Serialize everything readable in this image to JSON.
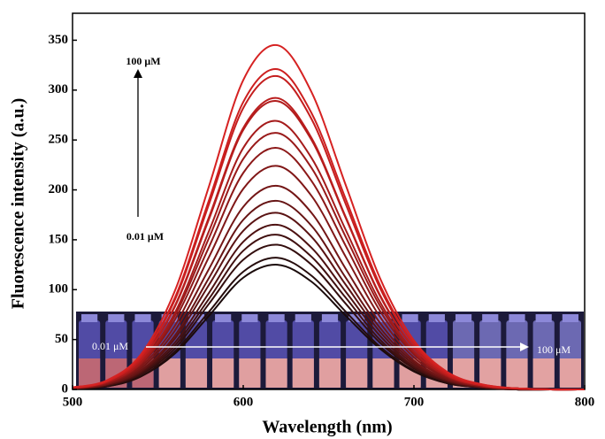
{
  "chart_data": {
    "type": "line",
    "xlabel": "Wavelength (nm)",
    "ylabel": "Fluorescence intensity (a.u.)",
    "annotations": [
      "100 μM",
      "0.01 μM",
      "0.01 μM",
      "100 μM"
    ],
    "x": [
      500,
      520,
      540,
      560,
      580,
      600,
      620,
      640,
      660,
      680,
      700,
      720,
      740,
      760,
      780,
      800
    ],
    "series": [
      {
        "color": "#1a0a0a",
        "values": [
          1,
          3,
          13,
          36,
          74,
          112,
          125,
          108,
          74,
          41,
          18,
          6,
          2,
          0,
          0,
          0
        ]
      },
      {
        "color": "#260c0c",
        "values": [
          1,
          3,
          13,
          38,
          78,
          118,
          132,
          114,
          78,
          43,
          19,
          6,
          2,
          0,
          0,
          0
        ]
      },
      {
        "color": "#330e0e",
        "values": [
          1,
          4,
          15,
          41,
          86,
          130,
          145,
          125,
          86,
          47,
          21,
          7,
          2,
          0,
          0,
          0
        ]
      },
      {
        "color": "#401010",
        "values": [
          1,
          4,
          16,
          44,
          91,
          139,
          155,
          133,
          92,
          50,
          22,
          8,
          2,
          0,
          0,
          0
        ]
      },
      {
        "color": "#4d1111",
        "values": [
          1,
          4,
          17,
          47,
          97,
          148,
          165,
          142,
          98,
          54,
          23,
          8,
          2,
          0,
          0,
          0
        ]
      },
      {
        "color": "#5a1313",
        "values": [
          1,
          5,
          18,
          51,
          105,
          159,
          177,
          153,
          105,
          58,
          25,
          9,
          2,
          1,
          0,
          0
        ]
      },
      {
        "color": "#661414",
        "values": [
          1,
          5,
          19,
          54,
          112,
          170,
          189,
          164,
          112,
          62,
          27,
          9,
          3,
          1,
          0,
          0
        ]
      },
      {
        "color": "#731616",
        "values": [
          1,
          5,
          21,
          59,
          121,
          183,
          204,
          177,
          121,
          67,
          29,
          10,
          3,
          1,
          0,
          0
        ]
      },
      {
        "color": "#801717",
        "values": [
          1,
          6,
          23,
          64,
          133,
          201,
          224,
          194,
          133,
          73,
          32,
          11,
          3,
          1,
          0,
          0
        ]
      },
      {
        "color": "#8c1818",
        "values": [
          1,
          6,
          25,
          70,
          143,
          217,
          242,
          209,
          144,
          79,
          35,
          12,
          3,
          1,
          0,
          0
        ]
      },
      {
        "color": "#991a1a",
        "values": [
          1,
          7,
          26,
          74,
          152,
          231,
          257,
          222,
          153,
          84,
          37,
          13,
          4,
          1,
          0,
          0
        ]
      },
      {
        "color": "#a51b1b",
        "values": [
          1,
          7,
          27,
          77,
          159,
          242,
          269,
          232,
          160,
          88,
          38,
          13,
          4,
          1,
          0,
          0
        ]
      },
      {
        "color": "#b01c1c",
        "values": [
          1,
          8,
          29,
          83,
          171,
          260,
          289,
          250,
          172,
          94,
          41,
          14,
          4,
          1,
          0,
          0
        ]
      },
      {
        "color": "#ba1d1d",
        "values": [
          1,
          8,
          30,
          84,
          173,
          262,
          292,
          252,
          173,
          95,
          42,
          14,
          4,
          1,
          0,
          0
        ]
      },
      {
        "color": "#c41e1e",
        "values": [
          2,
          8,
          32,
          90,
          186,
          282,
          314,
          271,
          186,
          102,
          45,
          15,
          4,
          1,
          0,
          0
        ]
      },
      {
        "color": "#cd1f1f",
        "values": [
          2,
          8,
          33,
          92,
          190,
          288,
          321,
          277,
          191,
          105,
          46,
          16,
          5,
          1,
          0,
          0
        ]
      },
      {
        "color": "#d62222",
        "values": [
          2,
          9,
          35,
          99,
          204,
          310,
          345,
          298,
          205,
          112,
          49,
          17,
          5,
          1,
          0,
          0
        ]
      }
    ],
    "xlim": [
      500,
      800
    ],
    "xticks": [
      500,
      600,
      700,
      800
    ],
    "ylim": [
      0,
      377
    ],
    "yticks": [
      0,
      50,
      100,
      150,
      200,
      250,
      300,
      350
    ]
  }
}
